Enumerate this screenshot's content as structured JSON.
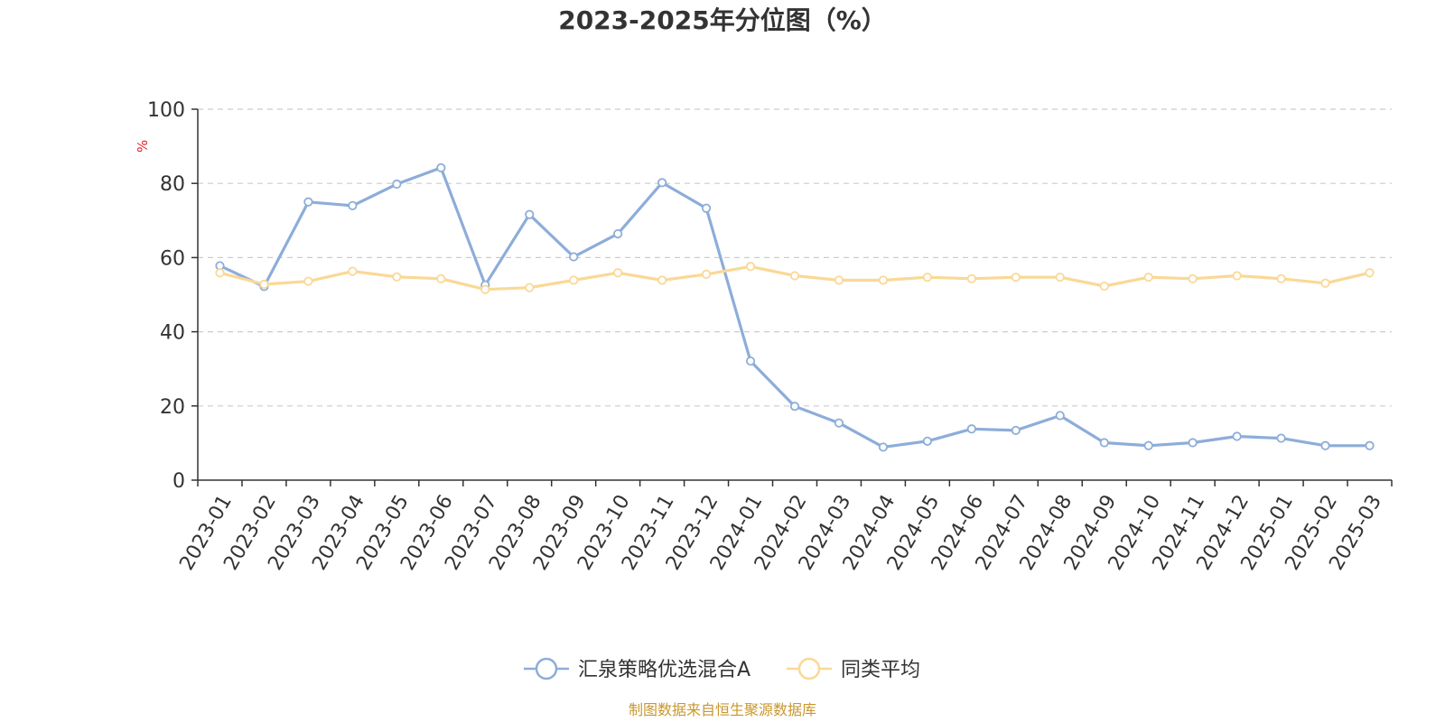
{
  "chart_data": {
    "type": "line",
    "title": "2023-2025年分位图（%）",
    "ylabel": "%",
    "xlabel": "",
    "ylim": [
      0,
      100
    ],
    "yticks": [
      0,
      20,
      40,
      60,
      80,
      100
    ],
    "grid": true,
    "legend_position": "bottom",
    "categories": [
      "2023-01",
      "2023-02",
      "2023-03",
      "2023-04",
      "2023-05",
      "2023-06",
      "2023-07",
      "2023-08",
      "2023-09",
      "2023-10",
      "2023-11",
      "2023-12",
      "2024-01",
      "2024-02",
      "2024-03",
      "2024-04",
      "2024-05",
      "2024-06",
      "2024-07",
      "2024-08",
      "2024-09",
      "2024-10",
      "2024-11",
      "2024-12",
      "2025-01",
      "2025-02",
      "2025-03"
    ],
    "series": [
      {
        "name": "汇泉策略优选混合A",
        "color": "#8DADD9",
        "values": [
          57.8,
          52.2,
          75.0,
          74.0,
          79.8,
          84.2,
          52.6,
          71.6,
          60.2,
          66.4,
          80.2,
          73.3,
          32.1,
          19.9,
          15.4,
          8.9,
          10.5,
          13.8,
          13.4,
          17.4,
          10.1,
          9.3,
          10.1,
          11.8,
          11.3,
          9.3,
          9.3
        ]
      },
      {
        "name": "同类平均",
        "color": "#FAD896",
        "values": [
          55.9,
          52.8,
          53.6,
          56.3,
          54.8,
          54.3,
          51.4,
          51.9,
          53.9,
          55.9,
          53.9,
          55.5,
          57.6,
          55.1,
          53.9,
          53.9,
          54.7,
          54.3,
          54.7,
          54.7,
          52.3,
          54.7,
          54.3,
          55.1,
          54.3,
          53.1,
          55.9
        ]
      }
    ]
  },
  "source_text": "制图数据来自恒生聚源数据库",
  "colors": {
    "title": "#333333",
    "axis": "#333333",
    "grid": "#CCCCCC",
    "ylabel": "#E8202A",
    "source": "#C8972E"
  }
}
